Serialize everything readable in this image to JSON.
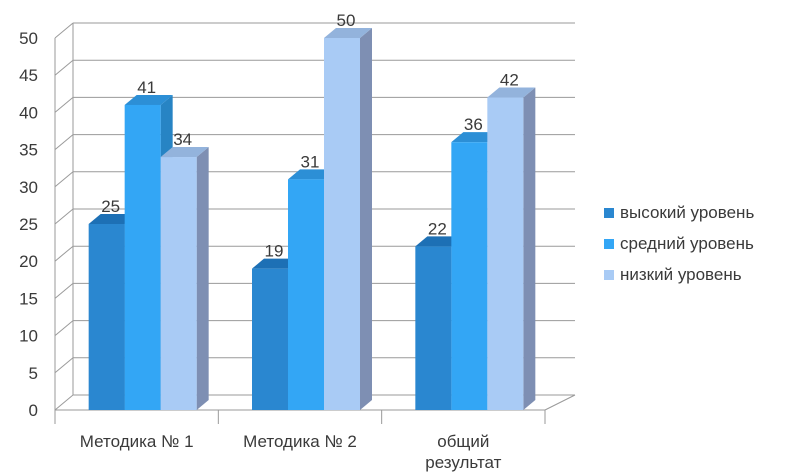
{
  "chart_data": {
    "type": "bar",
    "categories": [
      [
        "Методика № 1"
      ],
      [
        "Методика № 2"
      ],
      [
        "общий",
        "результат"
      ]
    ],
    "series": [
      {
        "name": "высокий уровень",
        "values": [
          25,
          19,
          22
        ],
        "color": "#2a87d0",
        "side_color": "#1f66a0",
        "top_color": "#1d70b5"
      },
      {
        "name": "средний уровень",
        "values": [
          41,
          31,
          36
        ],
        "color": "#33a6f5",
        "side_color": "#2784c4",
        "top_color": "#2c8fd6"
      },
      {
        "name": "низкий уровень",
        "values": [
          34,
          50,
          42
        ],
        "color": "#a9cbf5",
        "side_color": "#7e8fb3",
        "top_color": "#93b3dc"
      }
    ],
    "ylim": [
      0,
      50
    ],
    "yticks": [
      0,
      5,
      10,
      15,
      20,
      25,
      30,
      35,
      40,
      45,
      50
    ],
    "grid": true,
    "legend_position": "right",
    "three_d": true
  }
}
